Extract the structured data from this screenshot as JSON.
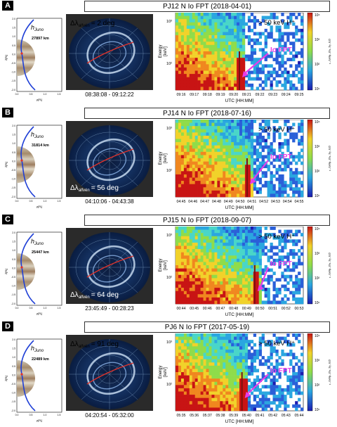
{
  "panels": [
    {
      "letter": "A",
      "title": "PJ12 N Io FPT (2018-04-01)",
      "altitude_label": "h",
      "altitude_sub": "Juno",
      "altitude_km": "27897 km",
      "delta_prefix": "Δλ",
      "delta_sub": "alfvén",
      "delta_value": "= 2 deg",
      "time_range": "08:38:08 - 09:12:22",
      "spec_label": "> 50 keV H⁺",
      "io_label": "Io FPT",
      "x_ticks": [
        "09:16",
        "09:17",
        "09:18",
        "09:19",
        "09:20",
        "09:21",
        "09:22",
        "09:23",
        "09:24",
        "09:25"
      ]
    },
    {
      "letter": "B",
      "title": "PJ14 N Io FPT (2018-07-16)",
      "altitude_label": "h",
      "altitude_sub": "Juno",
      "altitude_km": "31814 km",
      "delta_prefix": "Δλ",
      "delta_sub": "alfvén",
      "delta_value": "= 56 deg",
      "time_range": "04:10:06 - 04:43:38",
      "spec_label": "> 50 keV H⁺",
      "io_label": "Io FPT",
      "x_ticks": [
        "04:45",
        "04:46",
        "04:47",
        "04:48",
        "04:49",
        "04:50",
        "04:51",
        "04:52",
        "04:53",
        "04:54",
        "04:55"
      ]
    },
    {
      "letter": "C",
      "title": "PJ15 N Io FPT (2018-09-07)",
      "altitude_label": "h",
      "altitude_sub": "Juno",
      "altitude_km": "25447 km",
      "delta_prefix": "Δλ",
      "delta_sub": "alfvén",
      "delta_value": "= 64 deg",
      "time_range": "23:45:49 - 00:28:23",
      "spec_label": "> 50 keV H⁺",
      "io_label": "Io FPT",
      "x_ticks": [
        "00:44",
        "00:45",
        "00:46",
        "00:47",
        "00:48",
        "00:49",
        "00:50",
        "00:51",
        "00:52",
        "00:53"
      ]
    },
    {
      "letter": "D",
      "title": "PJ6 N Io FPT (2017-05-19)",
      "altitude_label": "h",
      "altitude_sub": "Juno",
      "altitude_km": "22489 km",
      "delta_prefix": "Δλ",
      "delta_sub": "alfvén",
      "delta_value": "= 91 deg",
      "time_range": "04:20:54 - 05:32:00",
      "spec_label": "> 50 keV H⁺",
      "io_label": "Io FPT",
      "x_ticks": [
        "05:35",
        "05:36",
        "05:37",
        "05:38",
        "05:39",
        "05:40",
        "05:41",
        "05:42",
        "05:43",
        "05:44"
      ]
    }
  ],
  "common": {
    "juno_y_label": "Z[Rⱼ]",
    "juno_x_label": "ρ[Rⱼ]",
    "juno_y_ticks": [
      "2.0",
      "1.5",
      "1.0",
      "0.5",
      "0.0",
      "-0.5",
      "-1.0",
      "-1.5",
      "-2.0"
    ],
    "juno_x_ticks": [
      "0.0",
      "0.5",
      "1.0",
      "1.5"
    ],
    "energy_label": "Energy",
    "energy_unit": "[keV]",
    "utc_label": "UTC [HH:MM]",
    "y_ticks": [
      "10³",
      "10²"
    ],
    "cb_ticks": [
      "10⁴",
      "10³",
      "10²",
      "10¹"
    ],
    "cb_label": "cm⁻²s⁻¹sr⁻¹keV⁻¹"
  },
  "colors": {
    "io_arrow": "#e83ce8",
    "juno_track": "#1f3fd6",
    "aurora_red": "#e0322a"
  }
}
